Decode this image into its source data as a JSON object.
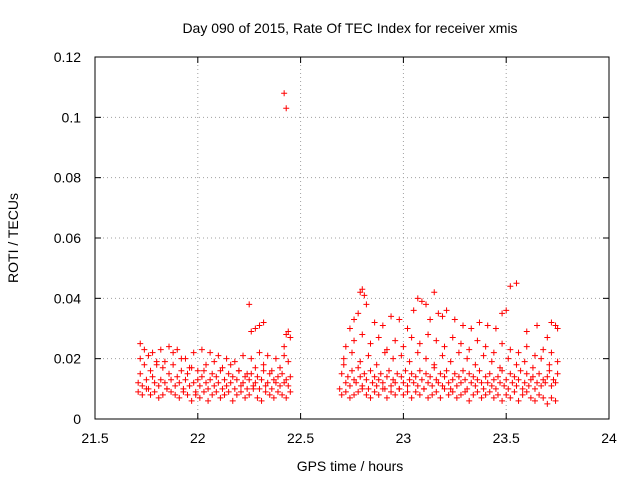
{
  "chart_data": {
    "type": "scatter",
    "title": "Day 090 of 2015, Rate Of TEC Index for receiver xmis",
    "xlabel": "GPS time / hours",
    "ylabel": "ROTI / TECUs",
    "xlim": [
      21.5,
      24
    ],
    "ylim": [
      0,
      0.12
    ],
    "xticks": [
      21.5,
      22,
      22.5,
      23,
      23.5,
      24
    ],
    "xtick_labels": [
      "21.5",
      "22",
      "22.5",
      "23",
      "23.5",
      "24"
    ],
    "yticks": [
      0,
      0.02,
      0.04,
      0.06,
      0.08,
      0.1,
      0.12
    ],
    "ytick_labels": [
      "0",
      "0.02",
      "0.04",
      "0.06",
      "0.08",
      "0.1",
      "0.12"
    ],
    "grid": true,
    "marker": "+",
    "color": "#ff0000",
    "series": [
      {
        "name": "ROTI",
        "x": [
          21.71,
          21.72,
          21.73,
          21.74,
          21.75,
          21.76,
          21.77,
          21.78,
          21.79,
          21.8,
          21.81,
          21.82,
          21.83,
          21.84,
          21.85,
          21.86,
          21.87,
          21.88,
          21.89,
          21.9,
          21.91,
          21.92,
          21.93,
          21.94,
          21.95,
          21.96,
          21.97,
          21.98,
          21.99,
          22.0,
          22.01,
          22.02,
          22.03,
          22.04,
          22.05,
          22.06,
          22.07,
          22.08,
          22.09,
          22.1,
          22.11,
          22.12,
          22.13,
          22.14,
          22.15,
          22.16,
          22.17,
          22.18,
          22.19,
          22.2,
          22.21,
          22.22,
          22.23,
          22.24,
          22.25,
          22.26,
          22.27,
          22.28,
          22.29,
          22.3,
          22.31,
          22.32,
          22.33,
          22.34,
          22.35,
          22.36,
          22.37,
          22.38,
          22.39,
          22.4,
          22.41,
          22.42,
          22.43,
          22.44,
          22.45,
          21.71,
          21.73,
          21.75,
          21.77,
          21.79,
          21.81,
          21.83,
          21.85,
          21.87,
          21.89,
          21.91,
          21.93,
          21.95,
          21.97,
          21.99,
          22.01,
          22.03,
          22.05,
          22.07,
          22.09,
          22.11,
          22.13,
          22.15,
          22.17,
          22.19,
          22.21,
          22.23,
          22.25,
          22.27,
          22.29,
          22.31,
          22.33,
          22.35,
          22.37,
          22.39,
          22.41,
          22.43,
          22.45,
          21.72,
          21.76,
          21.8,
          21.84,
          21.88,
          21.92,
          21.96,
          22.0,
          22.04,
          22.08,
          22.12,
          22.16,
          22.2,
          22.24,
          22.28,
          22.32,
          22.36,
          22.4,
          22.44,
          21.72,
          21.74,
          21.78,
          21.82,
          21.86,
          21.9,
          21.94,
          21.98,
          22.02,
          22.06,
          22.1,
          22.14,
          22.18,
          22.22,
          22.26,
          22.3,
          22.34,
          22.38,
          22.42,
          22.26,
          22.28,
          22.3,
          22.32,
          22.25,
          22.42,
          22.43,
          22.44,
          22.45,
          22.69,
          22.7,
          22.71,
          22.72,
          22.73,
          22.74,
          22.75,
          22.76,
          22.77,
          22.78,
          22.79,
          22.8,
          22.81,
          22.82,
          22.83,
          22.84,
          22.85,
          22.86,
          22.87,
          22.88,
          22.89,
          22.9,
          22.91,
          22.92,
          22.93,
          22.94,
          22.95,
          22.96,
          22.97,
          22.98,
          22.99,
          23.0,
          23.01,
          23.02,
          23.03,
          23.04,
          23.05,
          23.06,
          23.07,
          23.08,
          23.09,
          23.1,
          23.11,
          23.12,
          23.13,
          23.14,
          23.15,
          23.16,
          23.17,
          23.18,
          23.19,
          23.2,
          23.21,
          23.22,
          23.23,
          23.24,
          23.25,
          23.26,
          23.27,
          23.28,
          23.29,
          23.3,
          23.31,
          23.32,
          23.33,
          23.34,
          23.35,
          23.36,
          23.37,
          23.38,
          23.39,
          23.4,
          23.41,
          23.42,
          23.43,
          23.44,
          23.45,
          23.46,
          23.47,
          23.48,
          23.49,
          23.5,
          23.51,
          23.52,
          23.53,
          23.54,
          23.55,
          23.56,
          23.57,
          23.58,
          23.59,
          23.6,
          23.61,
          23.62,
          23.63,
          23.64,
          23.65,
          23.66,
          23.67,
          23.68,
          23.69,
          23.7,
          23.71,
          23.72,
          23.73,
          23.74,
          23.75,
          22.7,
          22.72,
          22.74,
          22.76,
          22.78,
          22.8,
          22.82,
          22.84,
          22.86,
          22.88,
          22.9,
          22.92,
          22.94,
          22.96,
          22.98,
          23.0,
          23.02,
          23.04,
          23.06,
          23.08,
          23.1,
          23.12,
          23.14,
          23.16,
          23.18,
          23.2,
          23.22,
          23.24,
          23.26,
          23.28,
          23.3,
          23.32,
          23.34,
          23.36,
          23.38,
          23.4,
          23.42,
          23.44,
          23.46,
          23.48,
          23.5,
          23.52,
          23.54,
          23.56,
          23.58,
          23.6,
          23.62,
          23.64,
          23.66,
          23.68,
          23.7,
          23.72,
          23.74,
          22.71,
          22.75,
          22.79,
          22.83,
          22.87,
          22.91,
          22.95,
          22.99,
          23.03,
          23.07,
          23.11,
          23.15,
          23.19,
          23.23,
          23.27,
          23.31,
          23.35,
          23.39,
          23.43,
          23.47,
          23.51,
          23.55,
          23.59,
          23.63,
          23.67,
          23.71,
          23.75,
          22.72,
          22.76,
          22.8,
          22.84,
          22.88,
          22.92,
          22.96,
          23.0,
          23.04,
          23.08,
          23.12,
          23.16,
          23.2,
          23.24,
          23.28,
          23.32,
          23.36,
          23.4,
          23.44,
          23.48,
          23.52,
          23.56,
          23.6,
          23.64,
          23.68,
          23.72,
          22.74,
          22.76,
          22.78,
          22.79,
          22.8,
          22.81,
          22.82,
          22.86,
          22.9,
          22.94,
          22.98,
          23.02,
          23.05,
          23.07,
          23.09,
          23.11,
          23.13,
          23.15,
          23.17,
          23.19,
          23.21,
          23.25,
          23.29,
          23.33,
          23.37,
          23.41,
          23.45,
          23.48,
          23.5,
          23.52,
          23.55,
          23.6,
          23.65,
          23.7,
          23.72,
          23.74,
          23.75,
          22.42,
          22.43
        ],
        "y": [
          0.012,
          0.015,
          0.011,
          0.018,
          0.013,
          0.01,
          0.016,
          0.014,
          0.012,
          0.019,
          0.011,
          0.013,
          0.017,
          0.012,
          0.01,
          0.015,
          0.013,
          0.018,
          0.011,
          0.014,
          0.012,
          0.016,
          0.01,
          0.013,
          0.015,
          0.011,
          0.017,
          0.012,
          0.009,
          0.013,
          0.011,
          0.014,
          0.016,
          0.012,
          0.01,
          0.013,
          0.015,
          0.011,
          0.014,
          0.012,
          0.016,
          0.01,
          0.013,
          0.011,
          0.015,
          0.012,
          0.014,
          0.01,
          0.013,
          0.016,
          0.011,
          0.012,
          0.014,
          0.01,
          0.013,
          0.015,
          0.011,
          0.012,
          0.014,
          0.01,
          0.013,
          0.016,
          0.011,
          0.012,
          0.015,
          0.01,
          0.013,
          0.012,
          0.014,
          0.011,
          0.015,
          0.012,
          0.013,
          0.011,
          0.014,
          0.009,
          0.008,
          0.01,
          0.008,
          0.009,
          0.007,
          0.008,
          0.01,
          0.009,
          0.008,
          0.007,
          0.009,
          0.008,
          0.006,
          0.008,
          0.007,
          0.009,
          0.006,
          0.008,
          0.009,
          0.007,
          0.008,
          0.009,
          0.006,
          0.008,
          0.009,
          0.007,
          0.008,
          0.01,
          0.007,
          0.006,
          0.009,
          0.008,
          0.007,
          0.009,
          0.008,
          0.007,
          0.009,
          0.02,
          0.021,
          0.018,
          0.019,
          0.022,
          0.02,
          0.017,
          0.016,
          0.018,
          0.019,
          0.017,
          0.018,
          0.016,
          0.015,
          0.017,
          0.018,
          0.016,
          0.017,
          0.019,
          0.025,
          0.023,
          0.022,
          0.023,
          0.024,
          0.023,
          0.02,
          0.022,
          0.023,
          0.022,
          0.021,
          0.02,
          0.019,
          0.021,
          0.02,
          0.022,
          0.021,
          0.02,
          0.024,
          0.029,
          0.03,
          0.031,
          0.032,
          0.038,
          0.021,
          0.028,
          0.029,
          0.027,
          0.01,
          0.015,
          0.018,
          0.012,
          0.014,
          0.011,
          0.016,
          0.013,
          0.012,
          0.017,
          0.014,
          0.011,
          0.015,
          0.013,
          0.01,
          0.016,
          0.012,
          0.014,
          0.011,
          0.013,
          0.015,
          0.012,
          0.01,
          0.014,
          0.016,
          0.011,
          0.013,
          0.012,
          0.015,
          0.01,
          0.014,
          0.012,
          0.016,
          0.011,
          0.013,
          0.015,
          0.012,
          0.014,
          0.011,
          0.016,
          0.013,
          0.01,
          0.015,
          0.012,
          0.014,
          0.011,
          0.017,
          0.013,
          0.012,
          0.015,
          0.011,
          0.014,
          0.016,
          0.012,
          0.01,
          0.013,
          0.015,
          0.011,
          0.014,
          0.012,
          0.016,
          0.013,
          0.01,
          0.015,
          0.012,
          0.014,
          0.011,
          0.013,
          0.016,
          0.012,
          0.01,
          0.014,
          0.012,
          0.015,
          0.011,
          0.013,
          0.01,
          0.014,
          0.012,
          0.016,
          0.011,
          0.013,
          0.01,
          0.015,
          0.012,
          0.014,
          0.011,
          0.013,
          0.016,
          0.01,
          0.012,
          0.015,
          0.011,
          0.013,
          0.014,
          0.01,
          0.012,
          0.015,
          0.011,
          0.013,
          0.012,
          0.014,
          0.016,
          0.011,
          0.013,
          0.012,
          0.015,
          0.008,
          0.009,
          0.007,
          0.008,
          0.009,
          0.01,
          0.008,
          0.007,
          0.009,
          0.008,
          0.01,
          0.007,
          0.009,
          0.008,
          0.01,
          0.008,
          0.009,
          0.007,
          0.009,
          0.008,
          0.01,
          0.007,
          0.008,
          0.009,
          0.007,
          0.01,
          0.008,
          0.009,
          0.007,
          0.008,
          0.009,
          0.006,
          0.008,
          0.009,
          0.007,
          0.008,
          0.009,
          0.007,
          0.008,
          0.006,
          0.008,
          0.007,
          0.009,
          0.006,
          0.008,
          0.009,
          0.007,
          0.006,
          0.008,
          0.007,
          0.005,
          0.007,
          0.006,
          0.02,
          0.022,
          0.019,
          0.021,
          0.018,
          0.022,
          0.02,
          0.021,
          0.019,
          0.022,
          0.02,
          0.018,
          0.021,
          0.019,
          0.022,
          0.02,
          0.018,
          0.021,
          0.019,
          0.017,
          0.02,
          0.018,
          0.019,
          0.017,
          0.02,
          0.018,
          0.019,
          0.024,
          0.026,
          0.028,
          0.025,
          0.027,
          0.023,
          0.026,
          0.024,
          0.027,
          0.025,
          0.028,
          0.026,
          0.024,
          0.027,
          0.025,
          0.023,
          0.026,
          0.024,
          0.022,
          0.025,
          0.023,
          0.022,
          0.024,
          0.021,
          0.023,
          0.022,
          0.03,
          0.033,
          0.035,
          0.042,
          0.043,
          0.041,
          0.038,
          0.032,
          0.031,
          0.034,
          0.033,
          0.03,
          0.036,
          0.04,
          0.039,
          0.038,
          0.033,
          0.042,
          0.035,
          0.034,
          0.036,
          0.033,
          0.031,
          0.03,
          0.032,
          0.031,
          0.03,
          0.035,
          0.036,
          0.044,
          0.045,
          0.029,
          0.031,
          0.027,
          0.032,
          0.031,
          0.03,
          0.108,
          0.103
        ]
      }
    ]
  }
}
